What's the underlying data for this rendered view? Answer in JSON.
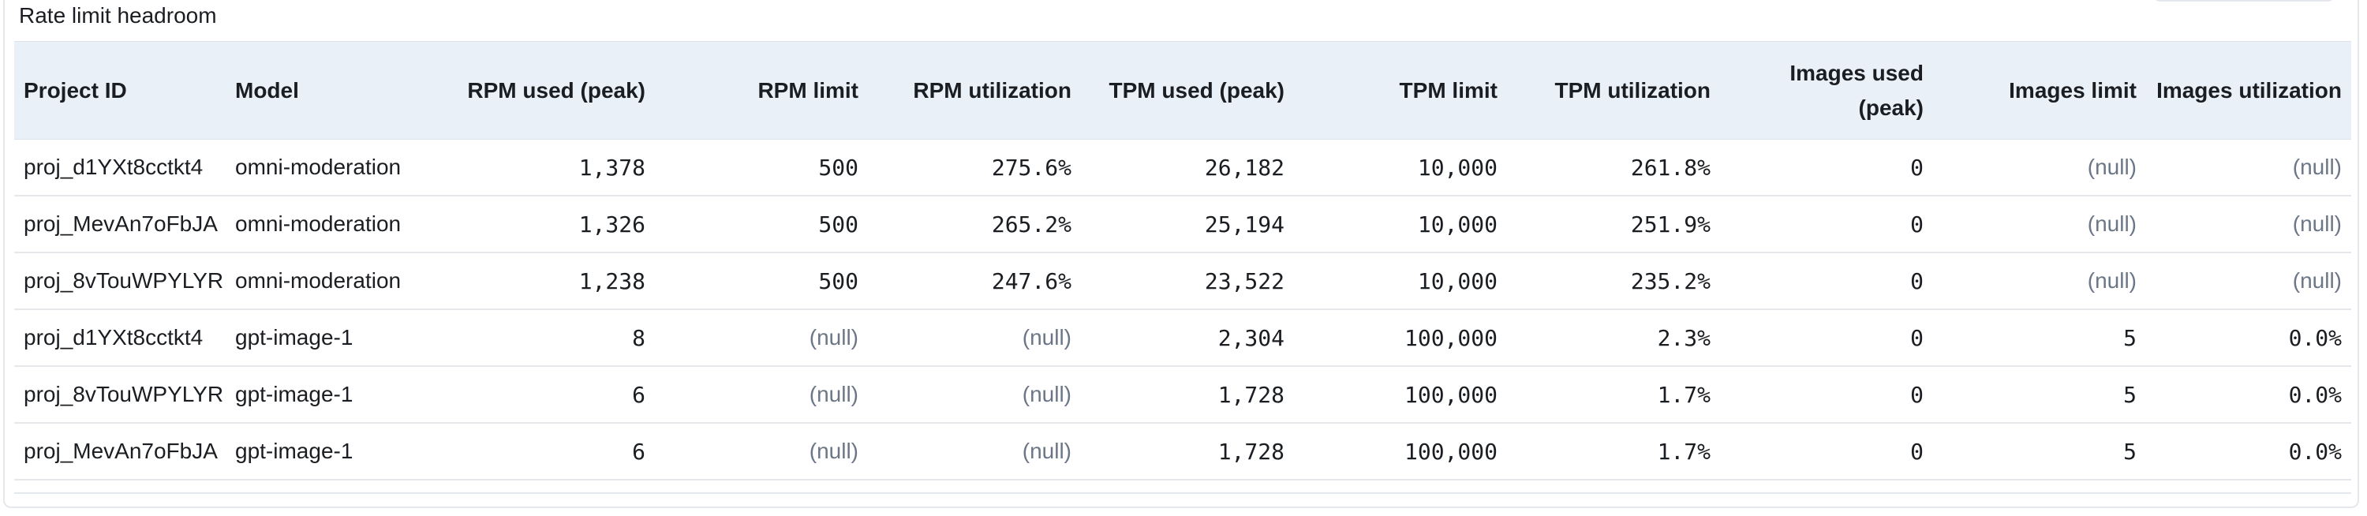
{
  "panel": {
    "title": "Rate limit headroom"
  },
  "table": {
    "columns": [
      {
        "label": "Project ID",
        "align": "l"
      },
      {
        "label": "Model",
        "align": "l"
      },
      {
        "label": "RPM used (peak)",
        "align": "r"
      },
      {
        "label": "RPM limit",
        "align": "r"
      },
      {
        "label": "RPM utilization",
        "align": "r"
      },
      {
        "label": "TPM used (peak)",
        "align": "r"
      },
      {
        "label": "TPM limit",
        "align": "r"
      },
      {
        "label": "TPM utilization",
        "align": "r"
      },
      {
        "label": "Images used (peak)",
        "align": "r"
      },
      {
        "label": "Images limit",
        "align": "r"
      },
      {
        "label": "Images utilization",
        "align": "r"
      }
    ],
    "rows": [
      [
        "proj_d1YXt8cctkt4",
        "omni-moderation",
        "1,378",
        "500",
        "275.6%",
        "26,182",
        "10,000",
        "261.8%",
        "0",
        "(null)",
        "(null)"
      ],
      [
        "proj_MevAn7oFbJA",
        "omni-moderation",
        "1,326",
        "500",
        "265.2%",
        "25,194",
        "10,000",
        "251.9%",
        "0",
        "(null)",
        "(null)"
      ],
      [
        "proj_8vTouWPYLYR",
        "omni-moderation",
        "1,238",
        "500",
        "247.6%",
        "23,522",
        "10,000",
        "235.2%",
        "0",
        "(null)",
        "(null)"
      ],
      [
        "proj_d1YXt8cctkt4",
        "gpt-image-1",
        "8",
        "(null)",
        "(null)",
        "2,304",
        "100,000",
        "2.3%",
        "0",
        "5",
        "0.0%"
      ],
      [
        "proj_8vTouWPYLYR",
        "gpt-image-1",
        "6",
        "(null)",
        "(null)",
        "1,728",
        "100,000",
        "1.7%",
        "0",
        "5",
        "0.0%"
      ],
      [
        "proj_MevAn7oFbJA",
        "gpt-image-1",
        "6",
        "(null)",
        "(null)",
        "1,728",
        "100,000",
        "1.7%",
        "0",
        "5",
        "0.0%"
      ]
    ]
  }
}
